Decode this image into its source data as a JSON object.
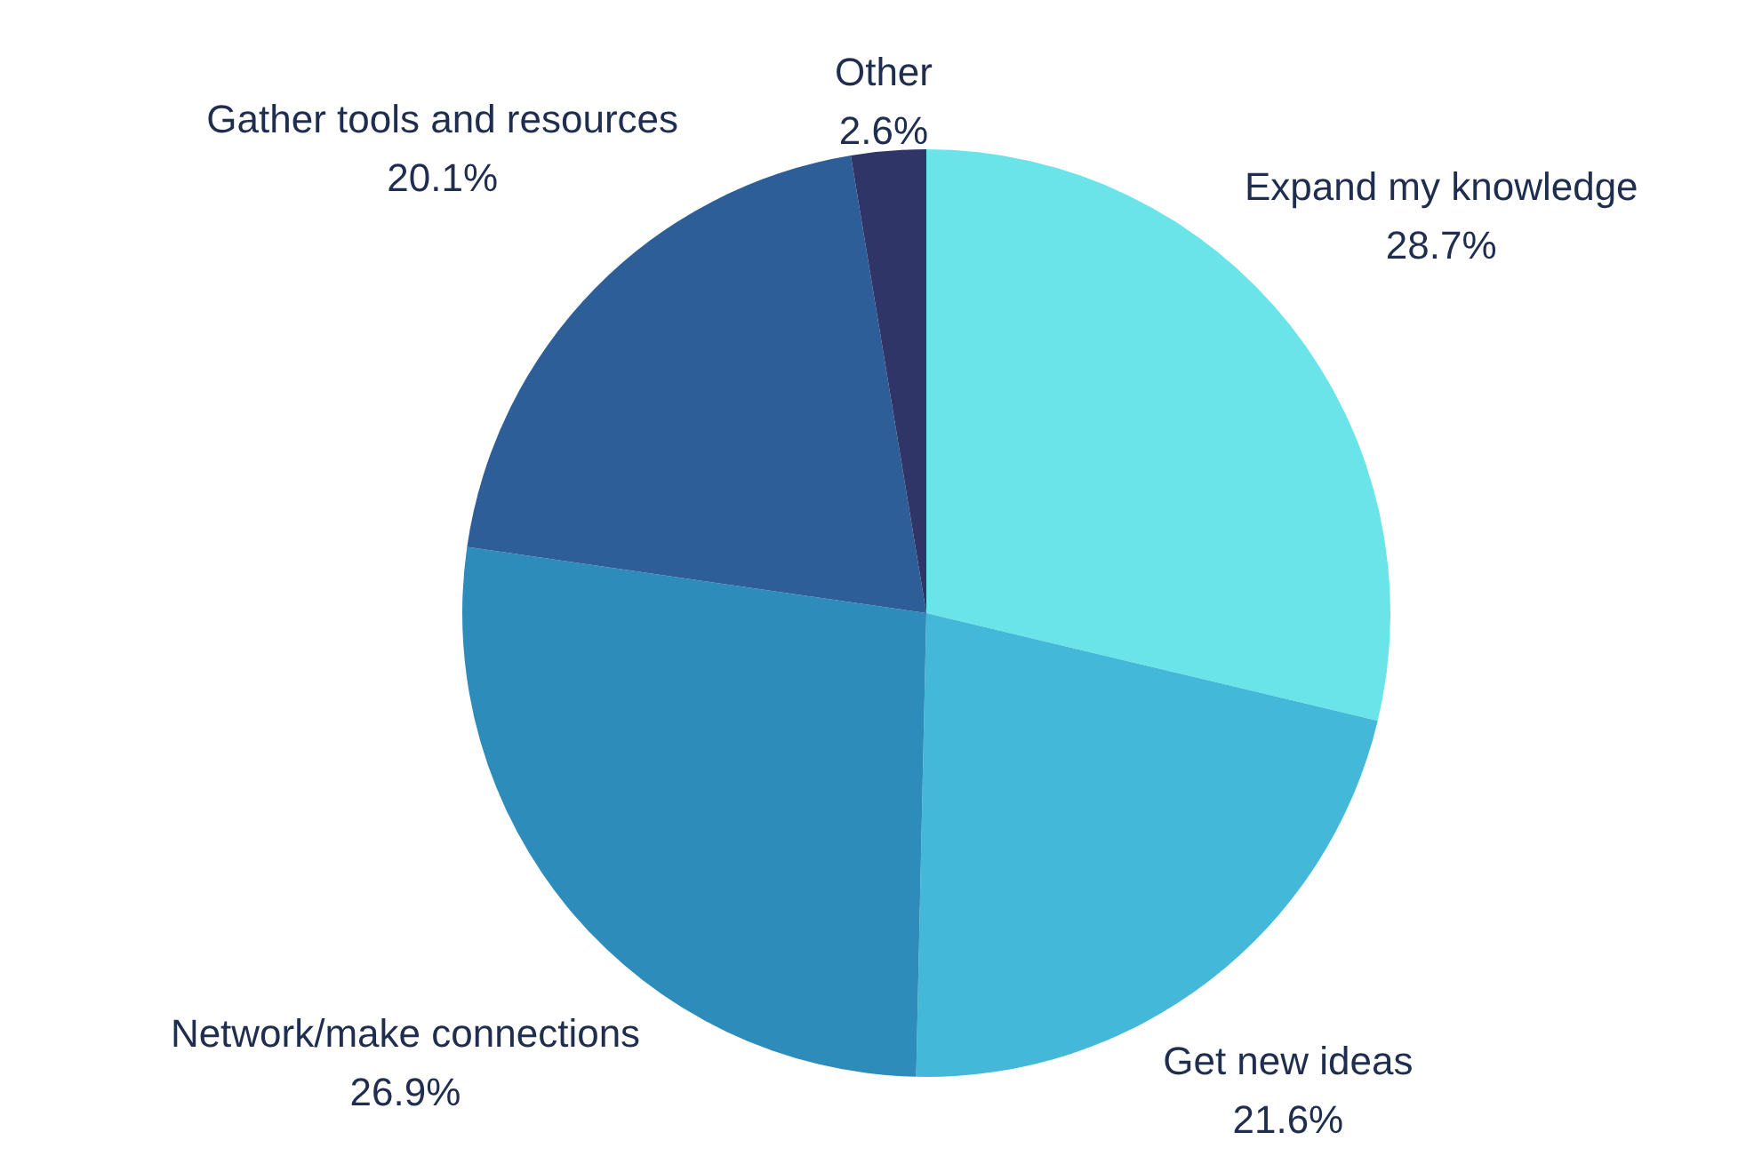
{
  "chart_data": {
    "type": "pie",
    "categories": [
      "Expand my knowledge",
      "Get new ideas",
      "Network/make connections",
      "Gather tools and resources",
      "Other"
    ],
    "values": [
      28.7,
      21.6,
      26.9,
      20.1,
      2.6
    ],
    "colors": [
      "#6ae4e8",
      "#44b8d8",
      "#2e8cbb",
      "#2e5e98",
      "#2f3567"
    ],
    "value_labels": [
      "28.7%",
      "21.6%",
      "26.9%",
      "20.1%",
      "2.6%"
    ]
  }
}
